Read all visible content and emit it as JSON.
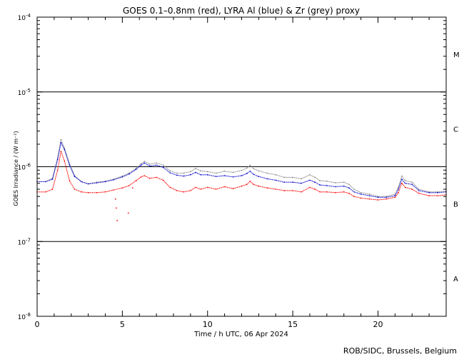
{
  "chart_data": {
    "type": "line",
    "title": "GOES 0.1–0.8nm (red), LYRA Al (blue) & Zr (grey) proxy",
    "xlabel": "Time / h UTC, 06 Apr 2024",
    "ylabel": "GOES Irradiance / (W m⁻²)",
    "xlim": [
      0,
      24
    ],
    "ylim": [
      1e-08,
      0.0001
    ],
    "yscale": "log",
    "x_ticks": [
      {
        "value": 0,
        "label": "0"
      },
      {
        "value": 5,
        "label": "5"
      },
      {
        "value": 10,
        "label": "10"
      },
      {
        "value": 15,
        "label": "15"
      },
      {
        "value": 20,
        "label": "20"
      }
    ],
    "y_ticks": [
      {
        "value": 1e-08,
        "base": "10",
        "exp": "-8"
      },
      {
        "value": 1e-07,
        "base": "10",
        "exp": "-7"
      },
      {
        "value": 1e-06,
        "base": "10",
        "exp": "-6"
      },
      {
        "value": 1e-05,
        "base": "10",
        "exp": "-5"
      },
      {
        "value": 0.0001,
        "base": "10",
        "exp": "-4"
      }
    ],
    "reference_lines": [
      1e-07,
      1e-06,
      1e-05
    ],
    "flare_classes": [
      {
        "label": "A",
        "level": 3.2e-08
      },
      {
        "label": "B",
        "level": 3.2e-07
      },
      {
        "label": "C",
        "level": 3.2e-06
      },
      {
        "label": "M",
        "level": 3.2e-05
      }
    ],
    "series": [
      {
        "color": "#888888",
        "x": [
          0,
          0.5,
          0.9,
          1.2,
          1.4,
          1.6,
          1.9,
          2.2,
          2.6,
          3.0,
          3.5,
          4.0,
          4.5,
          5.0,
          5.4,
          5.8,
          6.1,
          6.3,
          6.6,
          7.0,
          7.4,
          7.8,
          8.2,
          8.6,
          9.0,
          9.3,
          9.6,
          10.0,
          10.5,
          11.0,
          11.5,
          12.0,
          12.3,
          12.5,
          12.7,
          13.0,
          13.5,
          14.0,
          14.5,
          15.0,
          15.5,
          16.0,
          16.3,
          16.6,
          17.0,
          17.5,
          18.0,
          18.3,
          18.6,
          19.0,
          19.5,
          20.0,
          20.5,
          21.0,
          21.2,
          21.4,
          21.6,
          22.0,
          22.4,
          23.0,
          23.5,
          24.0
        ],
        "y": [
          6.3e-07,
          6.3e-07,
          7e-07,
          1.3e-06,
          2.3e-06,
          1.8e-06,
          1.1e-06,
          7.6e-07,
          6.3e-07,
          5.9e-07,
          6.2e-07,
          6.4e-07,
          6.8e-07,
          7.5e-07,
          8.2e-07,
          9.5e-07,
          1.1e-06,
          1.18e-06,
          1.08e-06,
          1.12e-06,
          1.05e-06,
          8.8e-07,
          8.2e-07,
          8.2e-07,
          8.6e-07,
          9.5e-07,
          8.8e-07,
          8.6e-07,
          8.2e-07,
          8.7e-07,
          8.4e-07,
          8.9e-07,
          9.6e-07,
          1.05e-06,
          9.4e-07,
          8.8e-07,
          8.2e-07,
          7.8e-07,
          7.2e-07,
          7.2e-07,
          6.9e-07,
          7.8e-07,
          7.2e-07,
          6.5e-07,
          6.4e-07,
          6.1e-07,
          6.2e-07,
          5.8e-07,
          5e-07,
          4.5e-07,
          4.3e-07,
          4e-07,
          4e-07,
          4.3e-07,
          5.3e-07,
          7.5e-07,
          6.5e-07,
          6.2e-07,
          5e-07,
          4.6e-07,
          4.6e-07,
          4.7e-07
        ]
      },
      {
        "color": "#0000cc",
        "x": [
          0,
          0.5,
          0.9,
          1.2,
          1.4,
          1.6,
          1.9,
          2.2,
          2.6,
          3.0,
          3.5,
          4.0,
          4.5,
          5.0,
          5.4,
          5.8,
          6.1,
          6.3,
          6.6,
          7.0,
          7.4,
          7.8,
          8.2,
          8.6,
          9.0,
          9.3,
          9.6,
          10.0,
          10.5,
          11.0,
          11.5,
          12.0,
          12.3,
          12.5,
          12.7,
          13.0,
          13.5,
          14.0,
          14.5,
          15.0,
          15.5,
          16.0,
          16.3,
          16.6,
          17.0,
          17.5,
          18.0,
          18.3,
          18.6,
          19.0,
          19.5,
          20.0,
          20.5,
          21.0,
          21.2,
          21.4,
          21.6,
          22.0,
          22.4,
          23.0,
          23.5,
          24.0
        ],
        "y": [
          6.3e-07,
          6.3e-07,
          6.8e-07,
          1.25e-06,
          2.1e-06,
          1.7e-06,
          1.05e-06,
          7.4e-07,
          6.3e-07,
          5.9e-07,
          6.1e-07,
          6.3e-07,
          6.7e-07,
          7.3e-07,
          8e-07,
          9.2e-07,
          1.05e-06,
          1.12e-06,
          1.02e-06,
          1.05e-06,
          9.8e-07,
          8.3e-07,
          7.7e-07,
          7.5e-07,
          7.8e-07,
          8.4e-07,
          7.8e-07,
          7.8e-07,
          7.4e-07,
          7.6e-07,
          7.3e-07,
          7.6e-07,
          8.1e-07,
          8.7e-07,
          7.9e-07,
          7.4e-07,
          6.9e-07,
          6.6e-07,
          6.2e-07,
          6.2e-07,
          6e-07,
          6.6e-07,
          6.2e-07,
          5.7e-07,
          5.6e-07,
          5.4e-07,
          5.5e-07,
          5.2e-07,
          4.6e-07,
          4.3e-07,
          4.1e-07,
          3.9e-07,
          3.9e-07,
          4.1e-07,
          5e-07,
          6.8e-07,
          6e-07,
          5.8e-07,
          4.8e-07,
          4.5e-07,
          4.5e-07,
          4.6e-07
        ]
      },
      {
        "color": "#ff0000",
        "x": [
          0,
          0.5,
          0.9,
          1.2,
          1.4,
          1.6,
          1.9,
          2.2,
          2.6,
          3.0,
          3.5,
          4.0,
          4.5,
          5.0,
          5.4,
          5.8,
          6.1,
          6.3,
          6.6,
          7.0,
          7.4,
          7.8,
          8.2,
          8.6,
          9.0,
          9.3,
          9.6,
          10.0,
          10.5,
          11.0,
          11.5,
          12.0,
          12.3,
          12.5,
          12.7,
          13.0,
          13.5,
          14.0,
          14.5,
          15.0,
          15.5,
          16.0,
          16.3,
          16.6,
          17.0,
          17.5,
          18.0,
          18.3,
          18.6,
          19.0,
          19.5,
          20.0,
          20.5,
          21.0,
          21.2,
          21.4,
          21.6,
          22.0,
          22.4,
          23.0,
          23.5,
          24.0
        ],
        "y": [
          4.6e-07,
          4.6e-07,
          5e-07,
          9e-07,
          1.6e-06,
          1.2e-06,
          6.5e-07,
          5e-07,
          4.6e-07,
          4.5e-07,
          4.5e-07,
          4.6e-07,
          4.9e-07,
          5.2e-07,
          5.6e-07,
          6.5e-07,
          7.3e-07,
          7.6e-07,
          7e-07,
          7.2e-07,
          6.6e-07,
          5.3e-07,
          4.8e-07,
          4.6e-07,
          4.8e-07,
          5.3e-07,
          5e-07,
          5.3e-07,
          5e-07,
          5.4e-07,
          5.1e-07,
          5.5e-07,
          5.8e-07,
          6.4e-07,
          5.8e-07,
          5.5e-07,
          5.2e-07,
          5e-07,
          4.8e-07,
          4.8e-07,
          4.6e-07,
          5.3e-07,
          5e-07,
          4.6e-07,
          4.6e-07,
          4.5e-07,
          4.6e-07,
          4.4e-07,
          4e-07,
          3.8e-07,
          3.7e-07,
          3.6e-07,
          3.7e-07,
          3.9e-07,
          4.5e-07,
          6e-07,
          5.3e-07,
          5e-07,
          4.4e-07,
          4.1e-07,
          4.1e-07,
          4.2e-07
        ]
      }
    ],
    "red_dropouts": [
      {
        "x": 4.6,
        "y": 3.7e-07
      },
      {
        "x": 4.65,
        "y": 2.8e-07
      },
      {
        "x": 4.7,
        "y": 1.9e-07
      },
      {
        "x": 5.35,
        "y": 2.4e-07
      },
      {
        "x": 5.6,
        "y": 5.2e-07
      }
    ]
  },
  "footer": {
    "credit": "ROB/SIDC, Brussels, Belgium"
  }
}
